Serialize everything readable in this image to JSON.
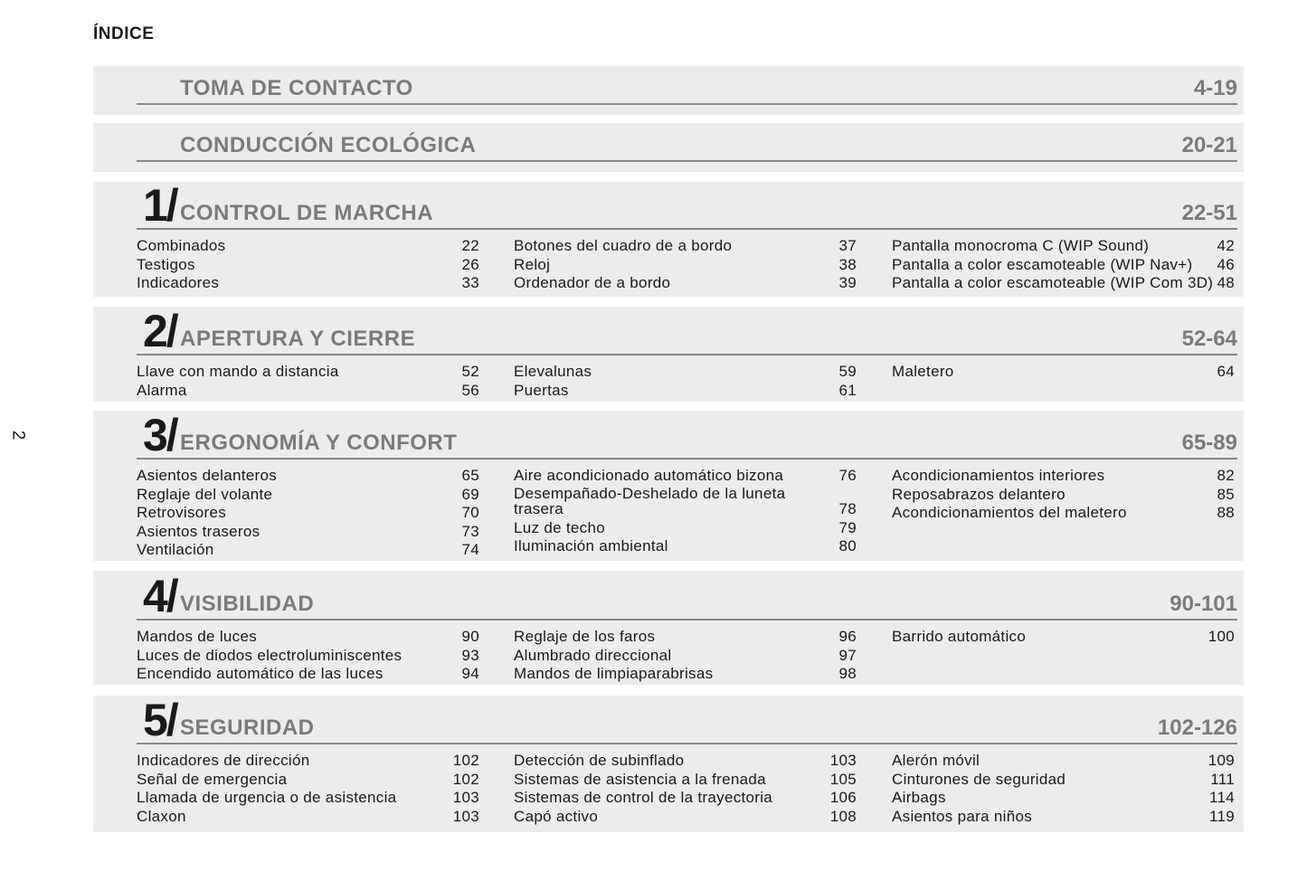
{
  "page_heading": "ÍNDICE",
  "page_number": "2",
  "sections": [
    {
      "number": "",
      "title": "TOMA DE CONTACTO",
      "range": "4-19",
      "columns": []
    },
    {
      "number": "",
      "title": "CONDUCCIÓN ECOLÓGICA",
      "range": "20-21",
      "columns": []
    },
    {
      "number": "1/",
      "title": "CONTROL DE MARCHA",
      "range": "22-51",
      "columns": [
        [
          {
            "label": "Combinados",
            "page": "22"
          },
          {
            "label": "Testigos",
            "page": "26"
          },
          {
            "label": "Indicadores",
            "page": "33"
          }
        ],
        [
          {
            "label": "Botones del cuadro de a bordo",
            "page": "37"
          },
          {
            "label": "Reloj",
            "page": "38"
          },
          {
            "label": "Ordenador de a bordo",
            "page": "39"
          }
        ],
        [
          {
            "label": "Pantalla monocroma C (WIP Sound)",
            "page": "42"
          },
          {
            "label": "Pantalla a color escamoteable (WIP Nav+)",
            "page": "46"
          },
          {
            "label": "Pantalla a color escamoteable (WIP Com 3D)",
            "page": "48"
          }
        ]
      ]
    },
    {
      "number": "2/",
      "title": "APERTURA Y CIERRE",
      "range": "52-64",
      "columns": [
        [
          {
            "label": "Llave con mando a distancia",
            "page": "52"
          },
          {
            "label": "Alarma",
            "page": "56"
          }
        ],
        [
          {
            "label": "Elevalunas",
            "page": "59"
          },
          {
            "label": "Puertas",
            "page": "61"
          }
        ],
        [
          {
            "label": "Maletero",
            "page": "64"
          }
        ]
      ]
    },
    {
      "number": "3/",
      "title": "ERGONOMÍA Y CONFORT",
      "range": "65-89",
      "columns": [
        [
          {
            "label": "Asientos delanteros",
            "page": "65"
          },
          {
            "label": "Reglaje del volante",
            "page": "69"
          },
          {
            "label": "Retrovisores",
            "page": "70"
          },
          {
            "label": "Asientos traseros",
            "page": "73"
          },
          {
            "label": "Ventilación",
            "page": "74"
          }
        ],
        [
          {
            "label": "Aire acondicionado automático bizona",
            "page": "76"
          },
          {
            "label": "Desempañado-Deshelado de la luneta\n  trasera",
            "page": "78"
          },
          {
            "label": "Luz de techo",
            "page": "79"
          },
          {
            "label": "Iluminación ambiental",
            "page": "80"
          }
        ],
        [
          {
            "label": "Acondicionamientos interiores",
            "page": "82"
          },
          {
            "label": "Reposabrazos delantero",
            "page": "85"
          },
          {
            "label": "Acondicionamientos del maletero",
            "page": "88"
          }
        ]
      ]
    },
    {
      "number": "4/",
      "title": "VISIBILIDAD",
      "range": "90-101",
      "columns": [
        [
          {
            "label": "Mandos de luces",
            "page": "90"
          },
          {
            "label": "Luces de diodos electroluminiscentes",
            "page": "93"
          },
          {
            "label": "Encendido automático de las luces",
            "page": "94"
          }
        ],
        [
          {
            "label": "Reglaje de los faros",
            "page": "96"
          },
          {
            "label": "Alumbrado direccional",
            "page": "97"
          },
          {
            "label": "Mandos de limpiaparabrisas",
            "page": "98"
          }
        ],
        [
          {
            "label": "Barrido automático",
            "page": "100"
          }
        ]
      ]
    },
    {
      "number": "5/",
      "title": "SEGURIDAD",
      "range": "102-126",
      "columns": [
        [
          {
            "label": "Indicadores de dirección",
            "page": "102"
          },
          {
            "label": "Señal de emergencia",
            "page": "102"
          },
          {
            "label": "Llamada de urgencia o de asistencia",
            "page": "103"
          },
          {
            "label": "Claxon",
            "page": "103"
          }
        ],
        [
          {
            "label": "Detección de subinflado",
            "page": "103"
          },
          {
            "label": "Sistemas de asistencia a la frenada",
            "page": "105"
          },
          {
            "label": "Sistemas de control de la trayectoria",
            "page": "106"
          },
          {
            "label": "Capó activo",
            "page": "108"
          }
        ],
        [
          {
            "label": "Alerón móvil",
            "page": "109"
          },
          {
            "label": "Cinturones de seguridad",
            "page": "111"
          },
          {
            "label": "Airbags",
            "page": "114"
          },
          {
            "label": "Asientos para niños",
            "page": "119"
          }
        ]
      ]
    }
  ]
}
